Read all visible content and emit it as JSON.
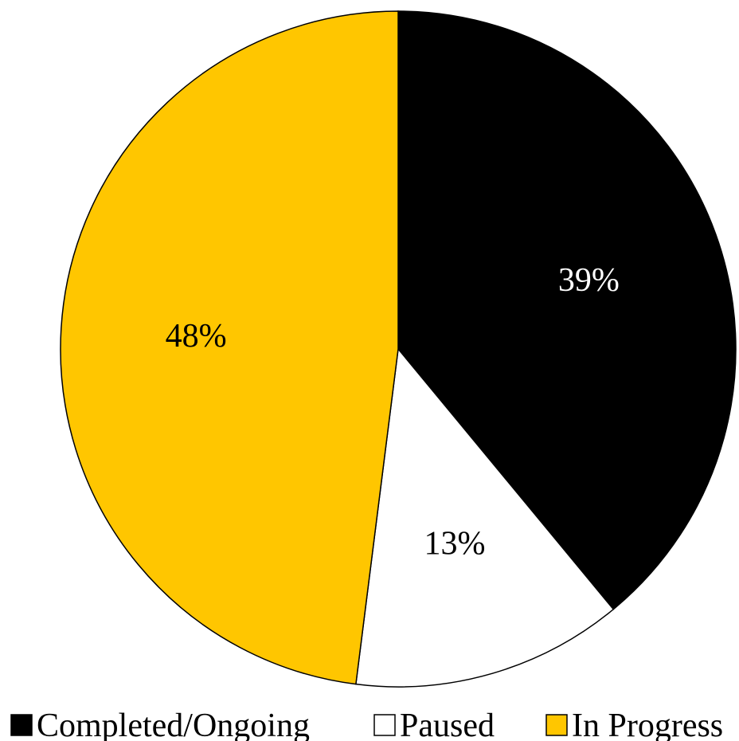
{
  "chart_data": {
    "type": "pie",
    "title": "",
    "start": "top",
    "direction": "clockwise",
    "slices": [
      {
        "name": "Completed/Ongoing",
        "value": 39,
        "label": "39%",
        "color": "#000000",
        "label_color": "#ffffff"
      },
      {
        "name": "Paused",
        "value": 13,
        "label": "13%",
        "color": "#ffffff",
        "label_color": "#000000"
      },
      {
        "name": "In Progress",
        "value": 48,
        "label": "48%",
        "color": "#ffc600",
        "label_color": "#000000"
      }
    ],
    "legend": {
      "position": "bottom",
      "items": [
        "Completed/Ongoing",
        "Paused",
        "In Progress"
      ]
    }
  }
}
